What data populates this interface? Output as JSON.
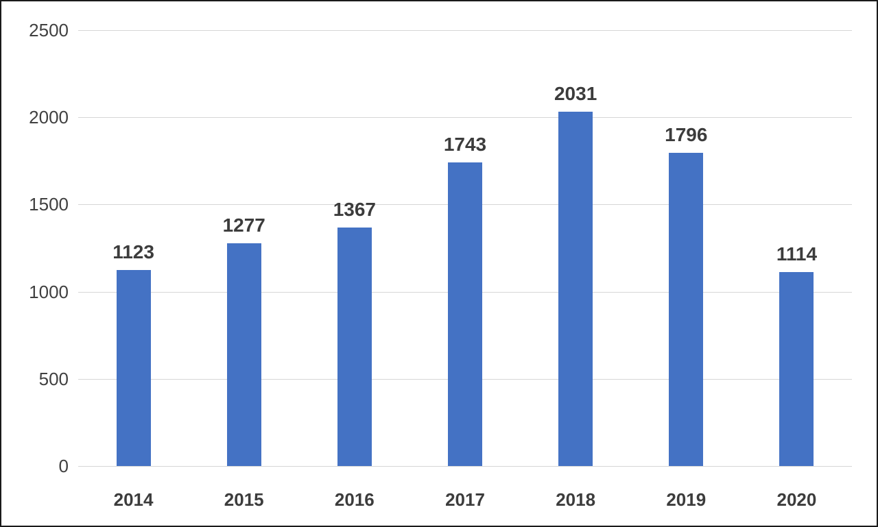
{
  "chart_data": {
    "type": "bar",
    "title": "",
    "xlabel": "",
    "ylabel": "",
    "categories": [
      "2014",
      "2015",
      "2016",
      "2017",
      "2018",
      "2019",
      "2020"
    ],
    "values": [
      1123,
      1277,
      1367,
      1743,
      2031,
      1796,
      1114
    ],
    "data_labels": [
      "1123",
      "1277",
      "1367",
      "1743",
      "2031",
      "1796",
      "1114"
    ],
    "ylim": [
      0,
      2500
    ],
    "yticks": [
      0,
      500,
      1000,
      1500,
      2000,
      2500
    ],
    "ytick_labels": [
      "0",
      "500",
      "1000",
      "1500",
      "2000",
      "2500"
    ],
    "grid": true,
    "legend_position": "none",
    "colors": {
      "bar": "#4472c4",
      "gridline": "#d6d6d6",
      "axis_text": "#404040",
      "data_label_text": "#3c3c3c",
      "frame_border": "#1a1a1a",
      "background": "#ffffff"
    }
  }
}
